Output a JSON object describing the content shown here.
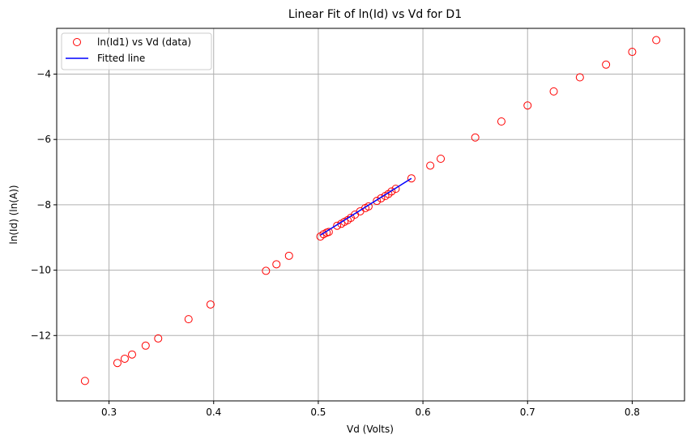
{
  "chart_data": {
    "type": "scatter",
    "title": "Linear Fit of ln(Id) vs Vd for D1",
    "xlabel": "Vd (Volts)",
    "ylabel": "ln(Id) (ln(A))",
    "xlim": [
      0.25,
      0.85
    ],
    "ylim": [
      -14.0,
      -2.6
    ],
    "x_ticks": [
      0.3,
      0.4,
      0.5,
      0.6,
      0.7,
      0.8
    ],
    "x_tick_labels": [
      "0.3",
      "0.4",
      "0.5",
      "0.6",
      "0.7",
      "0.8"
    ],
    "y_ticks": [
      -12,
      -10,
      -8,
      -6,
      -4
    ],
    "y_tick_labels": [
      "−12",
      "−10",
      "−8",
      "−6",
      "−4"
    ],
    "grid": true,
    "legend_position": "top-left",
    "series": [
      {
        "name": "ln(Id1) vs Vd (data)",
        "kind": "scatter",
        "marker": "hollow-circle",
        "color": "#ff0000",
        "x": [
          0.277,
          0.308,
          0.315,
          0.322,
          0.335,
          0.347,
          0.376,
          0.397,
          0.45,
          0.46,
          0.472,
          0.502,
          0.505,
          0.508,
          0.51,
          0.518,
          0.522,
          0.525,
          0.528,
          0.531,
          0.535,
          0.54,
          0.545,
          0.548,
          0.556,
          0.56,
          0.564,
          0.567,
          0.57,
          0.574,
          0.589,
          0.607,
          0.617,
          0.65,
          0.675,
          0.7,
          0.725,
          0.75,
          0.775,
          0.8,
          0.823
        ],
        "y": [
          -13.39,
          -12.84,
          -12.71,
          -12.58,
          -12.31,
          -12.09,
          -11.5,
          -11.05,
          -10.02,
          -9.82,
          -9.56,
          -8.97,
          -8.9,
          -8.85,
          -8.83,
          -8.64,
          -8.58,
          -8.52,
          -8.47,
          -8.4,
          -8.3,
          -8.2,
          -8.1,
          -8.05,
          -7.88,
          -7.8,
          -7.73,
          -7.67,
          -7.59,
          -7.51,
          -7.19,
          -6.8,
          -6.59,
          -5.94,
          -5.45,
          -4.96,
          -4.53,
          -4.1,
          -3.71,
          -3.32,
          -2.96
        ]
      },
      {
        "name": "Fitted line",
        "kind": "line",
        "color": "#0000ff",
        "x": [
          0.502,
          0.589
        ],
        "y": [
          -8.93,
          -7.19
        ]
      }
    ]
  }
}
